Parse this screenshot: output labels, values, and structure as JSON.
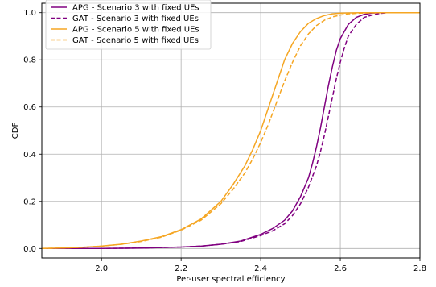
{
  "chart_data": {
    "type": "line",
    "title": "",
    "xlabel": "Per-user spectral efficiency",
    "ylabel": "CDF",
    "xlim": [
      1.85,
      2.8
    ],
    "ylim": [
      -0.04,
      1.04
    ],
    "xticks": [
      "2.0",
      "2.2",
      "2.4",
      "2.6",
      "2.8"
    ],
    "xtick_values": [
      2.0,
      2.2,
      2.4,
      2.6,
      2.8
    ],
    "yticks": [
      "0.0",
      "0.2",
      "0.4",
      "0.6",
      "0.8",
      "1.0"
    ],
    "ytick_values": [
      0.0,
      0.2,
      0.4,
      0.6,
      0.8,
      1.0
    ],
    "grid": true,
    "legend_placement": "top-left",
    "series": [
      {
        "name": "APG - Scenario 3 with fixed UEs",
        "color": "#800080",
        "dash": "solid",
        "x": [
          1.85,
          1.95,
          2.0,
          2.1,
          2.2,
          2.25,
          2.3,
          2.35,
          2.4,
          2.43,
          2.46,
          2.48,
          2.5,
          2.52,
          2.53,
          2.54,
          2.55,
          2.56,
          2.57,
          2.58,
          2.59,
          2.6,
          2.62,
          2.64,
          2.66,
          2.68,
          2.7,
          2.8
        ],
        "y": [
          0.0,
          0.0,
          0.0,
          0.002,
          0.006,
          0.01,
          0.018,
          0.032,
          0.06,
          0.085,
          0.12,
          0.16,
          0.22,
          0.3,
          0.36,
          0.43,
          0.51,
          0.6,
          0.69,
          0.77,
          0.84,
          0.89,
          0.95,
          0.98,
          0.993,
          0.998,
          1.0,
          1.0
        ]
      },
      {
        "name": "GAT - Scenario 3 with fixed UEs",
        "color": "#800080",
        "dash": "dashed",
        "x": [
          1.85,
          1.95,
          2.0,
          2.1,
          2.2,
          2.25,
          2.3,
          2.35,
          2.4,
          2.43,
          2.46,
          2.48,
          2.5,
          2.52,
          2.54,
          2.55,
          2.56,
          2.57,
          2.58,
          2.59,
          2.6,
          2.61,
          2.62,
          2.64,
          2.66,
          2.68,
          2.7,
          2.72,
          2.8
        ],
        "y": [
          0.0,
          0.0,
          0.0,
          0.002,
          0.006,
          0.01,
          0.018,
          0.03,
          0.055,
          0.075,
          0.105,
          0.14,
          0.19,
          0.26,
          0.35,
          0.41,
          0.48,
          0.56,
          0.64,
          0.72,
          0.79,
          0.85,
          0.9,
          0.95,
          0.98,
          0.99,
          0.997,
          1.0,
          1.0
        ]
      },
      {
        "name": "APG - Scenario 5 with fixed UEs",
        "color": "#f5a623",
        "dash": "solid",
        "x": [
          1.85,
          1.9,
          1.95,
          2.0,
          2.05,
          2.1,
          2.15,
          2.2,
          2.25,
          2.3,
          2.33,
          2.36,
          2.38,
          2.4,
          2.42,
          2.44,
          2.46,
          2.48,
          2.5,
          2.52,
          2.54,
          2.56,
          2.58,
          2.6,
          2.65,
          2.7,
          2.8
        ],
        "y": [
          0.0,
          0.002,
          0.005,
          0.01,
          0.018,
          0.032,
          0.05,
          0.08,
          0.125,
          0.2,
          0.27,
          0.35,
          0.42,
          0.5,
          0.6,
          0.7,
          0.8,
          0.87,
          0.92,
          0.955,
          0.975,
          0.988,
          0.995,
          0.998,
          1.0,
          1.0,
          1.0
        ]
      },
      {
        "name": "GAT - Scenario 5 with fixed UEs",
        "color": "#f5a623",
        "dash": "dashed",
        "x": [
          1.85,
          1.9,
          1.95,
          2.0,
          2.05,
          2.1,
          2.15,
          2.2,
          2.25,
          2.3,
          2.33,
          2.36,
          2.38,
          2.4,
          2.42,
          2.44,
          2.46,
          2.48,
          2.5,
          2.52,
          2.54,
          2.56,
          2.58,
          2.6,
          2.62,
          2.65,
          2.7,
          2.8
        ],
        "y": [
          0.0,
          0.002,
          0.005,
          0.01,
          0.018,
          0.03,
          0.048,
          0.078,
          0.12,
          0.19,
          0.25,
          0.32,
          0.38,
          0.45,
          0.53,
          0.62,
          0.71,
          0.79,
          0.86,
          0.91,
          0.945,
          0.968,
          0.982,
          0.99,
          0.995,
          0.998,
          1.0,
          1.0
        ]
      }
    ]
  }
}
